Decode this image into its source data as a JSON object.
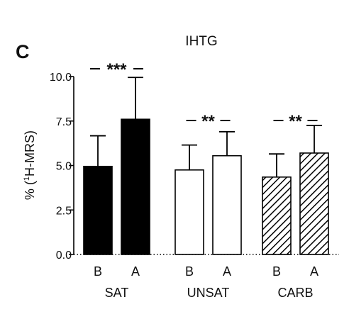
{
  "panel_label": "C",
  "chart_data": {
    "type": "bar",
    "title": "IHTG",
    "ylabel_prefix": "% (",
    "ylabel_sup": "1",
    "ylabel_suffix": "H-MRS)",
    "ylim": [
      0,
      10
    ],
    "yticks": [
      "0.0",
      "2.5",
      "5.0",
      "7.5",
      "10.0"
    ],
    "ytick_values": [
      0,
      2.5,
      5,
      7.5,
      10
    ],
    "groups": [
      {
        "name": "SAT",
        "fill": "solid",
        "significance": "***",
        "bars": [
          {
            "label": "B",
            "value": 4.95,
            "error": 1.72
          },
          {
            "label": "A",
            "value": 7.6,
            "error": 2.35
          }
        ]
      },
      {
        "name": "UNSAT",
        "fill": "open",
        "significance": "**",
        "bars": [
          {
            "label": "B",
            "value": 4.75,
            "error": 1.4
          },
          {
            "label": "A",
            "value": 5.55,
            "error": 1.35
          }
        ]
      },
      {
        "name": "CARB",
        "fill": "hatched",
        "significance": "**",
        "bars": [
          {
            "label": "B",
            "value": 4.35,
            "error": 1.3
          },
          {
            "label": "A",
            "value": 5.7,
            "error": 1.55
          }
        ]
      }
    ],
    "colors": {
      "bar_fill": "#000000",
      "bar_stroke": "#000000",
      "hatch": "#000000"
    }
  }
}
